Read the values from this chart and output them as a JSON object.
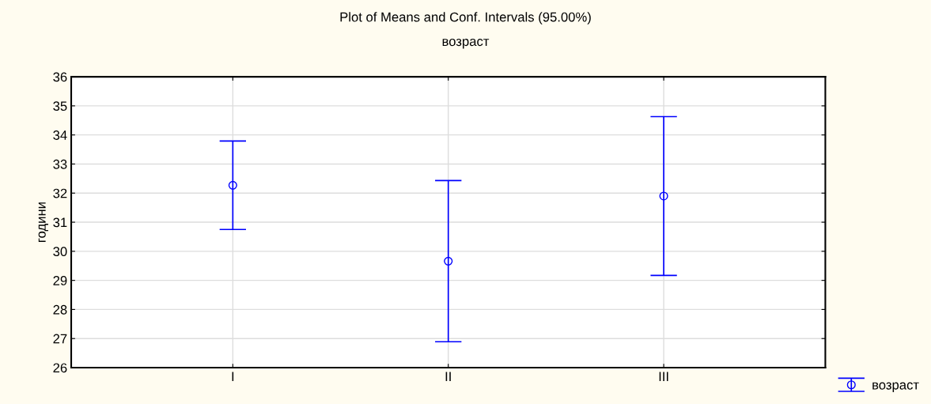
{
  "chart_data": {
    "type": "scatter",
    "title": "Plot of Means and Conf. Intervals (95.00%)",
    "subtitle": "возраст",
    "ylabel": "години",
    "categories": [
      "I",
      "II",
      "III"
    ],
    "series": [
      {
        "name": "возраст",
        "color": "#0000ff",
        "values": [
          32.27,
          29.66,
          31.9
        ],
        "errors": [
          1.52,
          2.77,
          2.73
        ]
      }
    ],
    "ylim": [
      26,
      36
    ],
    "yticks": [
      26,
      27,
      28,
      29,
      30,
      31,
      32,
      33,
      34,
      35,
      36
    ],
    "grid": true,
    "legend": "bottom right",
    "marker": "circle"
  }
}
